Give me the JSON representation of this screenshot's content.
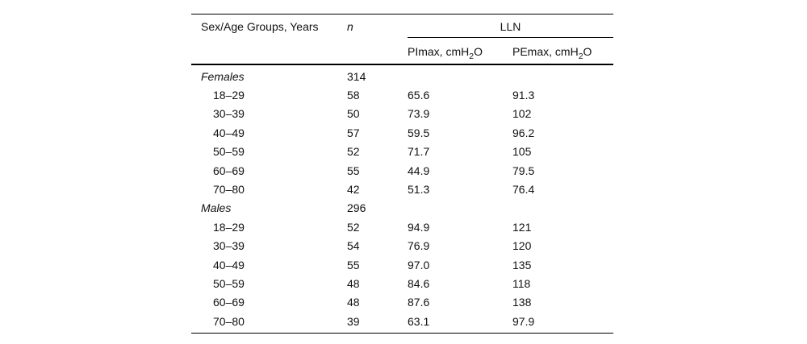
{
  "table": {
    "headers": {
      "sex_age": "Sex/Age Groups, Years",
      "n": "n",
      "lln_group": "LLN",
      "pimax": {
        "pre": "PImax, cmH",
        "sub": "2",
        "post": "O"
      },
      "pemax": {
        "pre": "PEmax, cmH",
        "sub": "2",
        "post": "O"
      }
    },
    "rows": [
      {
        "label": "Females",
        "style": "section",
        "n": "314",
        "pimax": "",
        "pemax": ""
      },
      {
        "label": "18–29",
        "style": "age",
        "n": "58",
        "pimax": "65.6",
        "pemax": "91.3"
      },
      {
        "label": "30–39",
        "style": "age",
        "n": "50",
        "pimax": "73.9",
        "pemax": "102"
      },
      {
        "label": "40–49",
        "style": "age",
        "n": "57",
        "pimax": "59.5",
        "pemax": "96.2"
      },
      {
        "label": "50–59",
        "style": "age",
        "n": "52",
        "pimax": "71.7",
        "pemax": "105"
      },
      {
        "label": "60–69",
        "style": "age",
        "n": "55",
        "pimax": "44.9",
        "pemax": "79.5"
      },
      {
        "label": "70–80",
        "style": "age",
        "n": "42",
        "pimax": "51.3",
        "pemax": "76.4"
      },
      {
        "label": "Males",
        "style": "section",
        "n": "296",
        "pimax": "",
        "pemax": ""
      },
      {
        "label": "18–29",
        "style": "age",
        "n": "52",
        "pimax": "94.9",
        "pemax": "121"
      },
      {
        "label": "30–39",
        "style": "age",
        "n": "54",
        "pimax": "76.9",
        "pemax": "120"
      },
      {
        "label": "40–49",
        "style": "age",
        "n": "55",
        "pimax": "97.0",
        "pemax": "135"
      },
      {
        "label": "50–59",
        "style": "age",
        "n": "48",
        "pimax": "84.6",
        "pemax": "118"
      },
      {
        "label": "60–69",
        "style": "age",
        "n": "48",
        "pimax": "87.6",
        "pemax": "138"
      },
      {
        "label": "70–80",
        "style": "age",
        "n": "39",
        "pimax": "63.1",
        "pemax": "97.9"
      }
    ],
    "colors": {
      "text": "#111111",
      "rule": "#000000",
      "background": "#ffffff"
    }
  }
}
